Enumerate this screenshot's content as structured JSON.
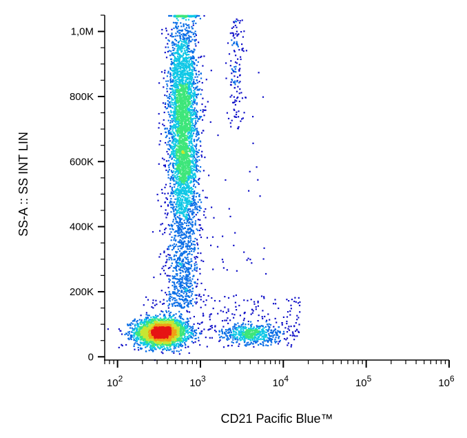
{
  "chart_data": {
    "type": "scatter",
    "style": "flow-cytometry pseudocolor density dot plot",
    "xlabel": "CD21 Pacific Blue™",
    "ylabel": "SS-A :: SS INT LIN",
    "xscale": "log",
    "yscale": "linear",
    "xlim": [
      70,
      1000000
    ],
    "ylim": [
      -10000,
      1050000
    ],
    "x_ticks": [
      {
        "value": 100,
        "base": "10",
        "exp": "2"
      },
      {
        "value": 1000,
        "base": "10",
        "exp": "3"
      },
      {
        "value": 10000,
        "base": "10",
        "exp": "4"
      },
      {
        "value": 100000,
        "base": "10",
        "exp": "5"
      },
      {
        "value": 1000000,
        "base": "10",
        "exp": "6"
      }
    ],
    "y_ticks": [
      {
        "value": 0,
        "label": "0"
      },
      {
        "value": 200000,
        "label": "200K"
      },
      {
        "value": 400000,
        "label": "400K"
      },
      {
        "value": 600000,
        "label": "600K"
      },
      {
        "value": 800000,
        "label": "800K"
      },
      {
        "value": 1000000,
        "label": "1,0M"
      }
    ],
    "grid": false,
    "colormap": [
      "#1010c8",
      "#0a6ee6",
      "#10c8e6",
      "#3ee67a",
      "#c8e632",
      "#f0a014",
      "#e61414"
    ],
    "populations": [
      {
        "name_hint": "CD21- low side scatter cluster",
        "x_center": 340,
        "y_center": 75000,
        "x_spread_log": 0.16,
        "y_spread": 22000,
        "density": "high"
      },
      {
        "name_hint": "CD21- high side scatter stream",
        "x_center": 620,
        "y_range": [
          150000,
          1050000
        ],
        "peak_y": 740000,
        "x_spread_log": 0.09,
        "density": "high"
      },
      {
        "name_hint": "CD21+ cluster",
        "x_center": 4200,
        "y_center": 70000,
        "x_spread_log": 0.18,
        "y_spread": 15000,
        "density": "medium"
      },
      {
        "name_hint": "CD21+ high side scatter stream",
        "x_center": 2700,
        "y_range": [
          700000,
          1040000
        ],
        "x_spread_log": 0.05,
        "density": "low"
      }
    ]
  }
}
